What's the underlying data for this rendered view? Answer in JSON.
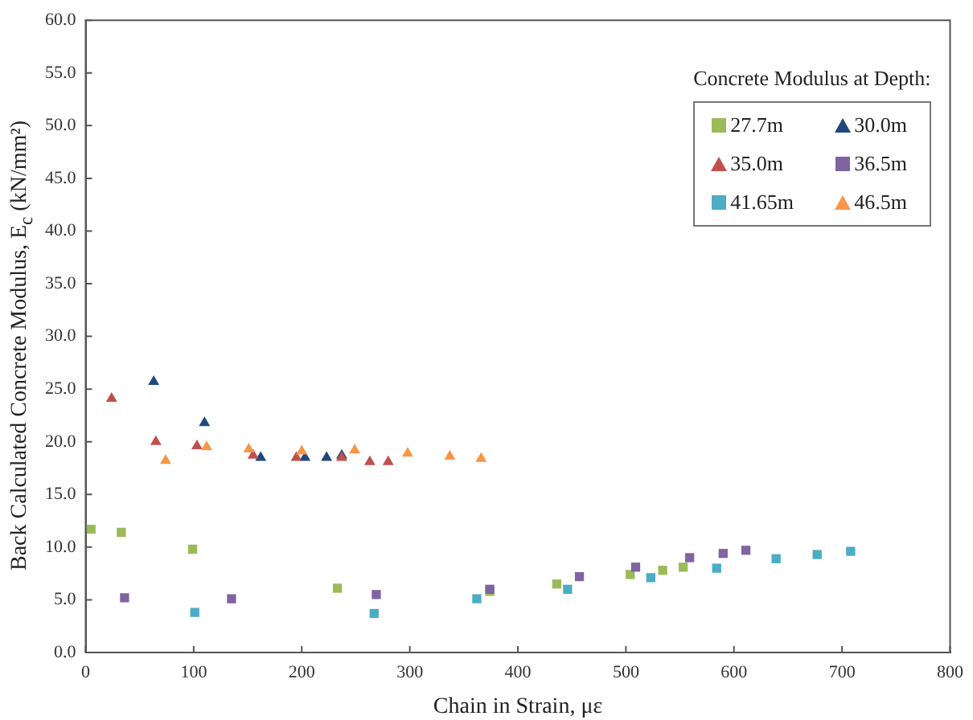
{
  "chart_data": {
    "type": "scatter",
    "xlabel": "Chain in Strain, με",
    "ylabel": "Back Calculated Concrete Modulus, E$_{c}$ (kN/mm²)",
    "legend_title": "Concrete Modulus at Depth:",
    "legend": "top right",
    "grid": false,
    "xlim": [
      0,
      800
    ],
    "xticks": [
      0,
      100,
      200,
      300,
      400,
      500,
      600,
      700,
      800
    ],
    "ylim": [
      0,
      60
    ],
    "yticks": [
      {
        "value": 0,
        "label": "0.0"
      },
      {
        "value": 5,
        "label": "5.0"
      },
      {
        "value": 10,
        "label": "10.0"
      },
      {
        "value": 15,
        "label": "15.0"
      },
      {
        "value": 20,
        "label": "20.0"
      },
      {
        "value": 25,
        "label": "25.0"
      },
      {
        "value": 30,
        "label": "30.0"
      },
      {
        "value": 35,
        "label": "35.0"
      },
      {
        "value": 40,
        "label": "40.0"
      },
      {
        "value": 45,
        "label": "45.0"
      },
      {
        "value": 50,
        "label": "50.0"
      },
      {
        "value": 55,
        "label": "55.0"
      },
      {
        "value": 60,
        "label": "60.0"
      }
    ],
    "series": [
      {
        "name": "27.7m",
        "color": "#9bbb59",
        "marker": "square",
        "x": [
          5,
          33,
          99,
          233,
          374,
          436,
          504,
          534,
          553
        ],
        "values": [
          11.7,
          11.4,
          9.8,
          6.1,
          5.8,
          6.5,
          7.4,
          7.8,
          8.1
        ]
      },
      {
        "name": "30.0m",
        "color": "#1f497d",
        "marker": "triangle",
        "x": [
          63,
          110,
          162,
          203,
          223,
          237
        ],
        "values": [
          25.7,
          21.8,
          18.5,
          18.5,
          18.5,
          18.7
        ]
      },
      {
        "name": "35.0m",
        "color": "#c0504d",
        "marker": "triangle",
        "x": [
          24,
          65,
          103,
          155,
          195,
          237,
          263,
          280
        ],
        "values": [
          24.1,
          20.0,
          19.6,
          18.7,
          18.5,
          18.5,
          18.1,
          18.1
        ]
      },
      {
        "name": "36.5m",
        "color": "#8064a2",
        "marker": "square",
        "x": [
          36,
          135,
          269,
          374,
          457,
          509,
          559,
          590,
          611
        ],
        "values": [
          5.2,
          5.1,
          5.5,
          6.0,
          7.2,
          8.1,
          9.0,
          9.4,
          9.7
        ]
      },
      {
        "name": "41.65m",
        "color": "#4bacc6",
        "marker": "square",
        "x": [
          101,
          267,
          362,
          446,
          523,
          584,
          639,
          677,
          708
        ],
        "values": [
          3.8,
          3.7,
          5.1,
          6.0,
          7.1,
          8.0,
          8.9,
          9.3,
          9.6
        ]
      },
      {
        "name": "46.5m",
        "color": "#f79646",
        "marker": "triangle",
        "x": [
          74,
          112,
          151,
          200,
          249,
          298,
          337,
          366
        ],
        "values": [
          18.2,
          19.5,
          19.3,
          19.1,
          19.2,
          18.9,
          18.6,
          18.4
        ]
      }
    ]
  }
}
